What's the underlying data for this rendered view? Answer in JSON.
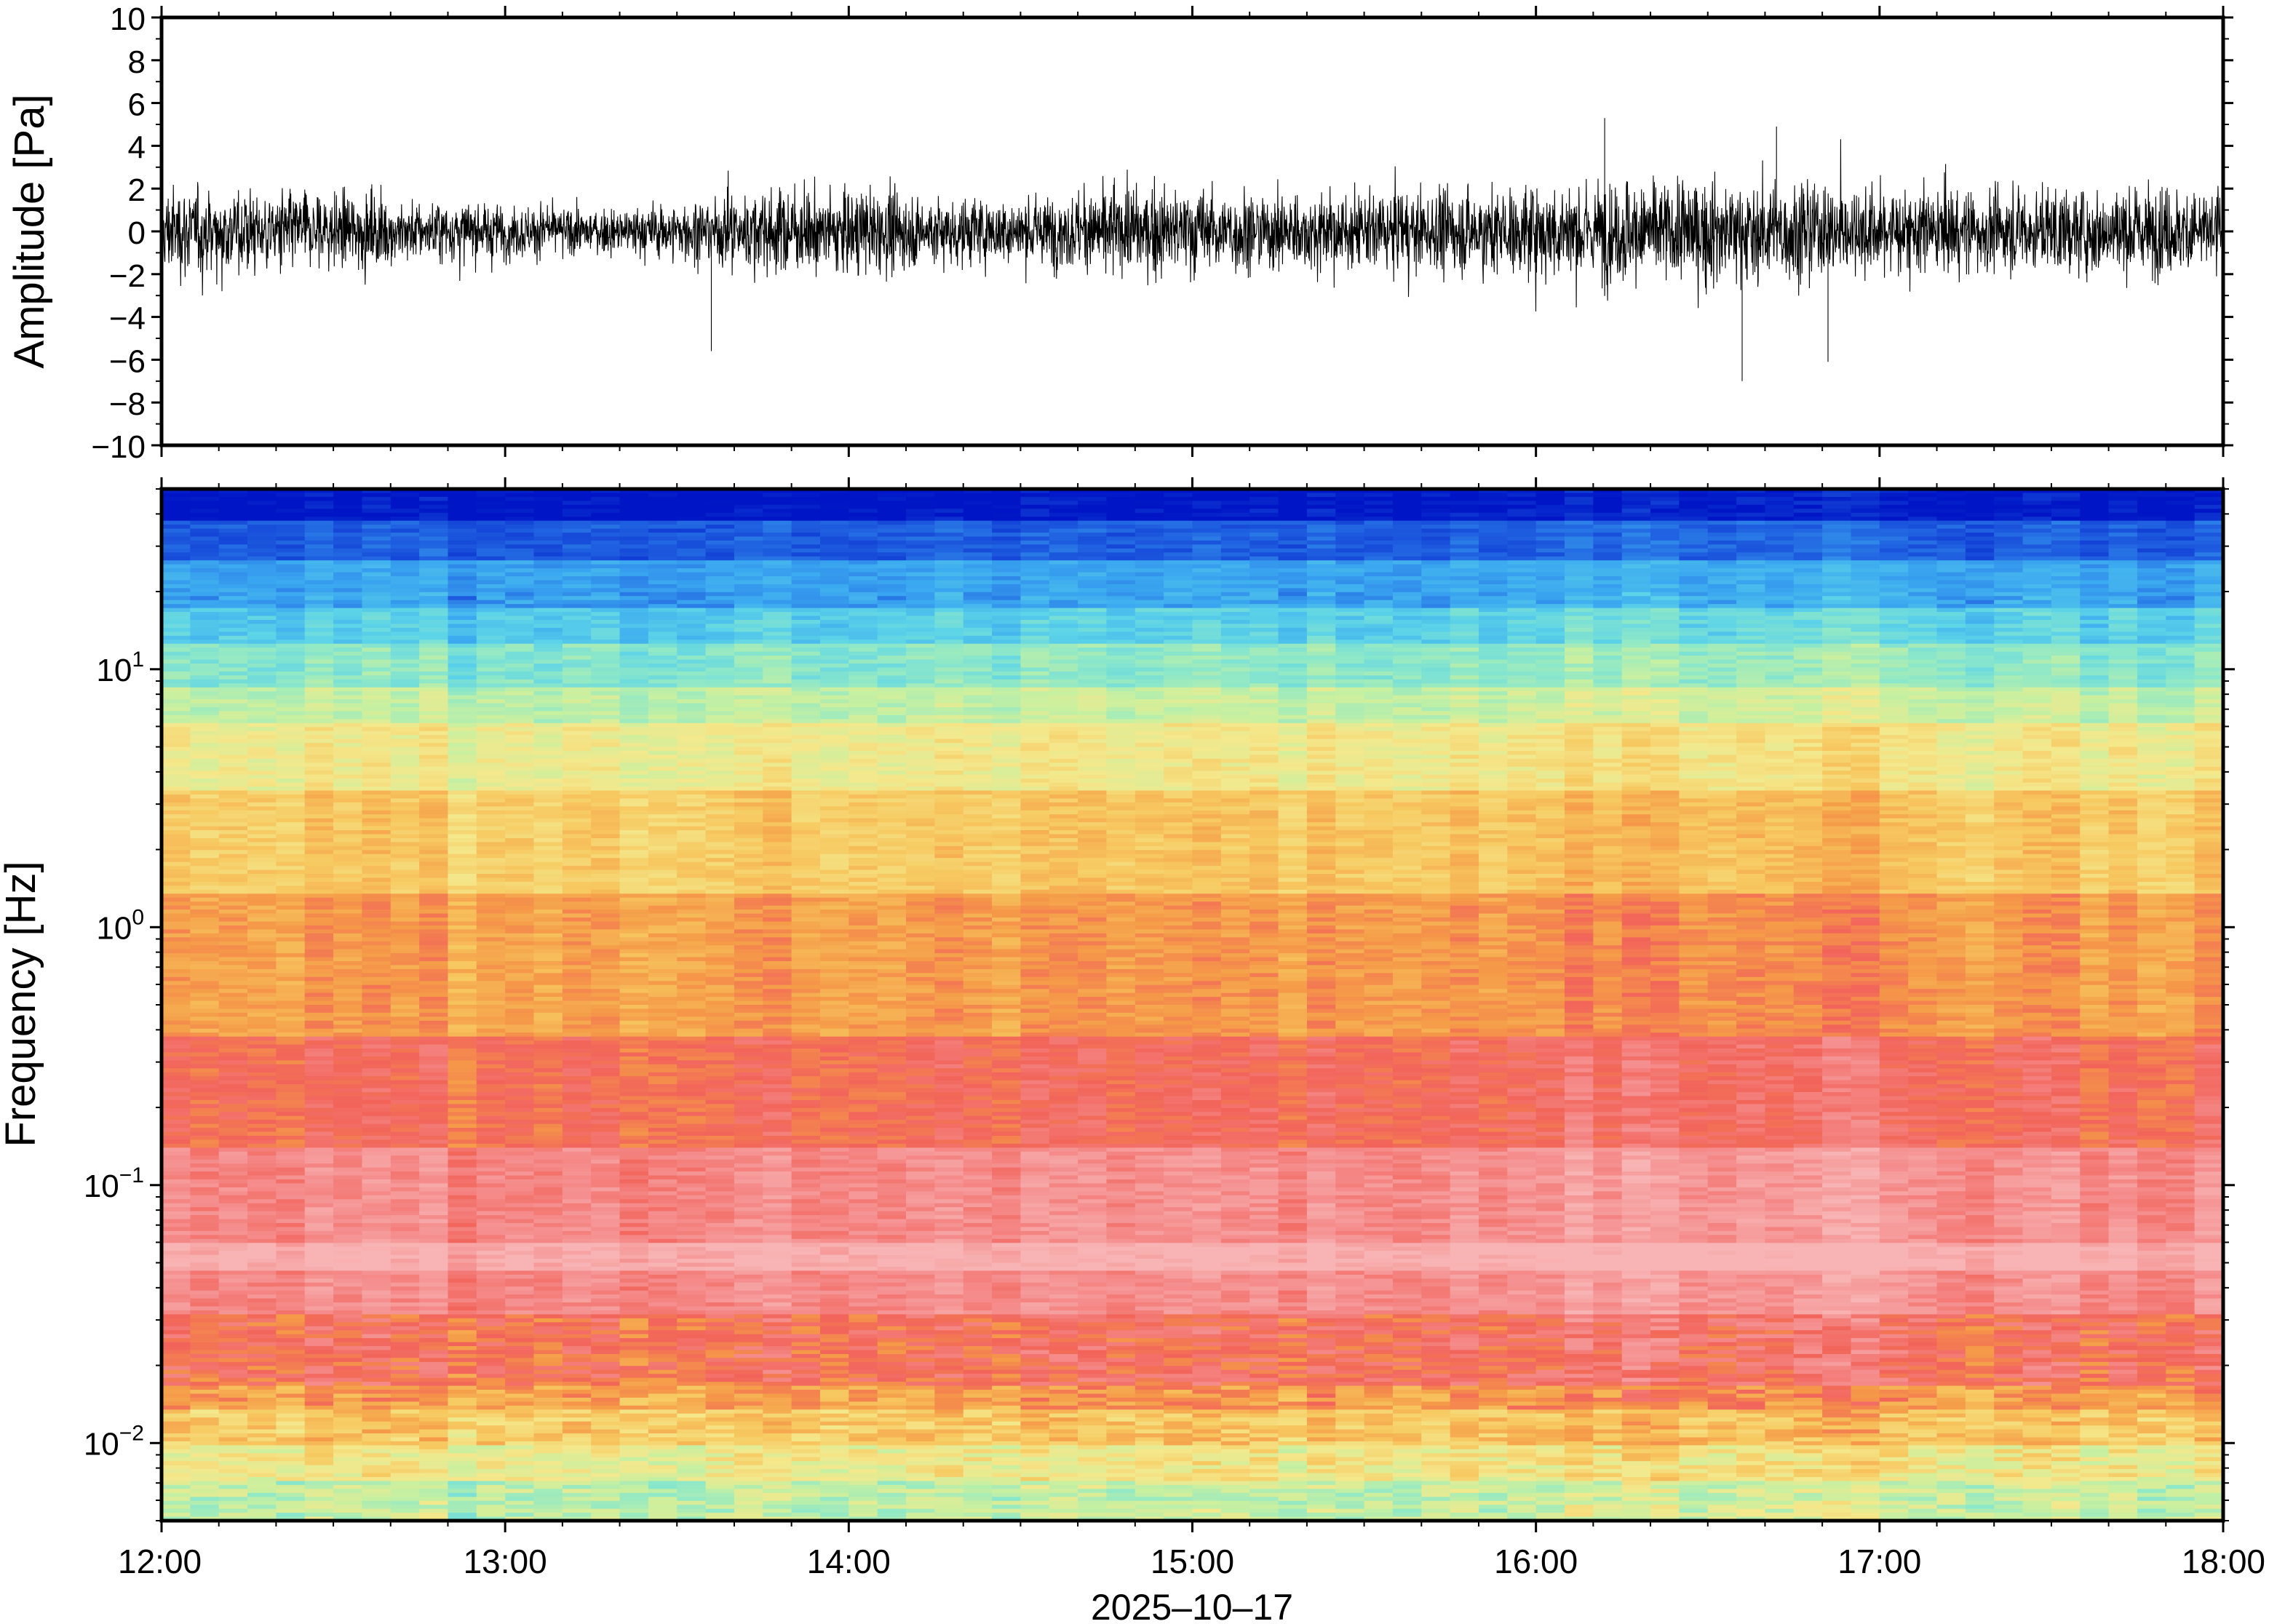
{
  "chart_data": [
    {
      "type": "line",
      "panel": "waveform",
      "ylabel": "Amplitude [Pa]",
      "ylim": [
        -10,
        10
      ],
      "yticks": [
        -10,
        -8,
        -6,
        -4,
        -2,
        0,
        2,
        4,
        6,
        8,
        10
      ],
      "ytick_labels": [
        "−10",
        "−8",
        "−6",
        "−4",
        "−2",
        "0",
        "2",
        "4",
        "6",
        "8",
        "10"
      ],
      "x_start": "2025-10-17 12:00",
      "x_end": "2025-10-17 18:00",
      "series": [
        {
          "color": "#000000",
          "envelope_time_hours": [
            12.0,
            12.25,
            12.5,
            12.75,
            13.0,
            13.25,
            13.5,
            13.75,
            14.0,
            14.25,
            14.5,
            14.75,
            15.0,
            15.25,
            15.5,
            15.75,
            16.0,
            16.25,
            16.5,
            16.75,
            17.0,
            17.25,
            17.5,
            17.75,
            18.0
          ],
          "envelope_amplitude_pa": [
            3.8,
            3.5,
            3.3,
            2.6,
            2.4,
            1.8,
            2.5,
            3.5,
            3.6,
            3.0,
            2.8,
            3.5,
            3.8,
            3.4,
            3.2,
            3.5,
            4.0,
            4.5,
            4.4,
            4.2,
            3.8,
            3.6,
            3.5,
            3.8,
            3.8
          ],
          "extreme_peaks": [
            {
              "t": 13.6,
              "v": -5.6
            },
            {
              "t": 16.2,
              "v": 5.3
            },
            {
              "t": 16.6,
              "v": -7.0
            },
            {
              "t": 16.7,
              "v": 4.9
            },
            {
              "t": 16.85,
              "v": -6.1
            }
          ]
        }
      ]
    },
    {
      "type": "heatmap",
      "panel": "spectrogram",
      "ylabel": "Frequency [Hz]",
      "xlabel": "2025–10–17",
      "yscale": "log",
      "ylim": [
        0.005,
        50
      ],
      "yticks": [
        0.01,
        0.1,
        1,
        10
      ],
      "ytick_labels": [
        {
          "base": "10",
          "exp": "−2"
        },
        {
          "base": "10",
          "exp": "−1"
        },
        {
          "base": "10",
          "exp": "0"
        },
        {
          "base": "10",
          "exp": "1"
        }
      ],
      "xticks_hours": [
        12,
        13,
        14,
        15,
        16,
        17,
        18
      ],
      "xtick_labels": [
        "12:00",
        "13:00",
        "14:00",
        "15:00",
        "16:00",
        "17:00",
        "18:00"
      ],
      "colormap": [
        "#0016c6",
        "#1f5fe0",
        "#3ba8f0",
        "#5cd3e8",
        "#8ee8c8",
        "#c8f0a0",
        "#f4e88c",
        "#f7c860",
        "#f59a48",
        "#f2645a",
        "#f58f8f",
        "#f8b4b4"
      ],
      "frequency_profile": [
        {
          "f": 40,
          "color": "#0a2fd4"
        },
        {
          "f": 25,
          "color": "#3b8ef0"
        },
        {
          "f": 15,
          "color": "#5cc8e8"
        },
        {
          "f": 10,
          "color": "#9ae6c8"
        },
        {
          "f": 6,
          "color": "#e6ee9c"
        },
        {
          "f": 3,
          "color": "#f6d070"
        },
        {
          "f": 1,
          "color": "#f5a44e"
        },
        {
          "f": 0.4,
          "color": "#f5845a"
        },
        {
          "f": 0.2,
          "color": "#f2645a"
        },
        {
          "f": 0.1,
          "color": "#f58c8c"
        },
        {
          "f": 0.05,
          "color": "#f7a8a8"
        },
        {
          "f": 0.03,
          "color": "#f47070"
        },
        {
          "f": 0.02,
          "color": "#f06060"
        },
        {
          "f": 0.013,
          "color": "#f7b560"
        },
        {
          "f": 0.008,
          "color": "#eee890"
        },
        {
          "f": 0.006,
          "color": "#c8f0a0"
        }
      ]
    }
  ]
}
